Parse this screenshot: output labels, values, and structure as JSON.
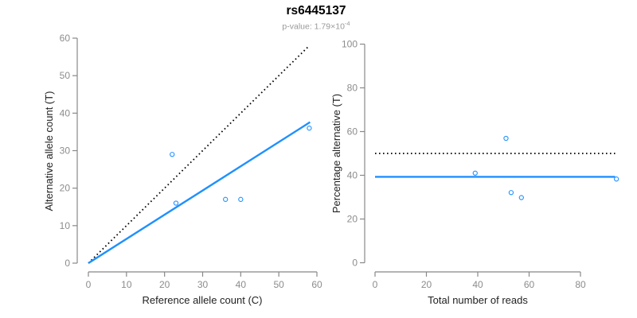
{
  "title": "rs6445137",
  "subtitle": {
    "text": "p-value: 1.79×10",
    "sup": "-4"
  },
  "colors": {
    "accent_blue": "#1E90FF",
    "dotted_black": "#000000",
    "axis_gray": "#888888",
    "tick_label_gray": "#8c8c8c",
    "axis_title_dark": "#222222",
    "subtitle_gray": "#999999",
    "background": "#ffffff"
  },
  "chart_data": [
    {
      "type": "scatter",
      "title": "",
      "xlabel": "Reference allele count (C)",
      "ylabel": "Alternative allele count (T)",
      "xlim": [
        0,
        60
      ],
      "ylim": [
        0,
        60
      ],
      "xticks": [
        0,
        10,
        20,
        30,
        40,
        50,
        60
      ],
      "yticks": [
        0,
        10,
        20,
        30,
        40,
        50,
        60
      ],
      "grid": false,
      "legend_position": "none",
      "points": [
        [
          22,
          29
        ],
        [
          23,
          16
        ],
        [
          36,
          17
        ],
        [
          40,
          17
        ],
        [
          58,
          36
        ]
      ],
      "lines": [
        {
          "name": "identity-line",
          "style": "dotted",
          "color": "#000000",
          "x": [
            0,
            58
          ],
          "y": [
            0,
            58
          ]
        },
        {
          "name": "fit-line",
          "style": "solid",
          "color": "#1E90FF",
          "x": [
            0,
            58.2
          ],
          "y": [
            0,
            37.6
          ]
        }
      ]
    },
    {
      "type": "scatter",
      "title": "",
      "xlabel": "Total number of reads",
      "ylabel": "Percentage alternative (T)",
      "xlim": [
        0,
        94
      ],
      "ylim": [
        0,
        100
      ],
      "xticks": [
        0,
        20,
        40,
        60,
        80
      ],
      "yticks": [
        0,
        20,
        40,
        60,
        80,
        100
      ],
      "grid": false,
      "legend_position": "none",
      "points": [
        [
          39,
          41
        ],
        [
          51,
          56.9
        ],
        [
          53,
          32.1
        ],
        [
          57,
          29.8
        ],
        [
          94,
          38.3
        ]
      ],
      "lines": [
        {
          "name": "expected-50pct-line",
          "style": "dotted",
          "color": "#000000",
          "x": [
            0,
            93.5
          ],
          "y": [
            50,
            50
          ]
        },
        {
          "name": "overall-pct-line",
          "style": "solid",
          "color": "#1E90FF",
          "x": [
            0,
            93.5
          ],
          "y": [
            39.3,
            39.3
          ]
        }
      ]
    }
  ]
}
